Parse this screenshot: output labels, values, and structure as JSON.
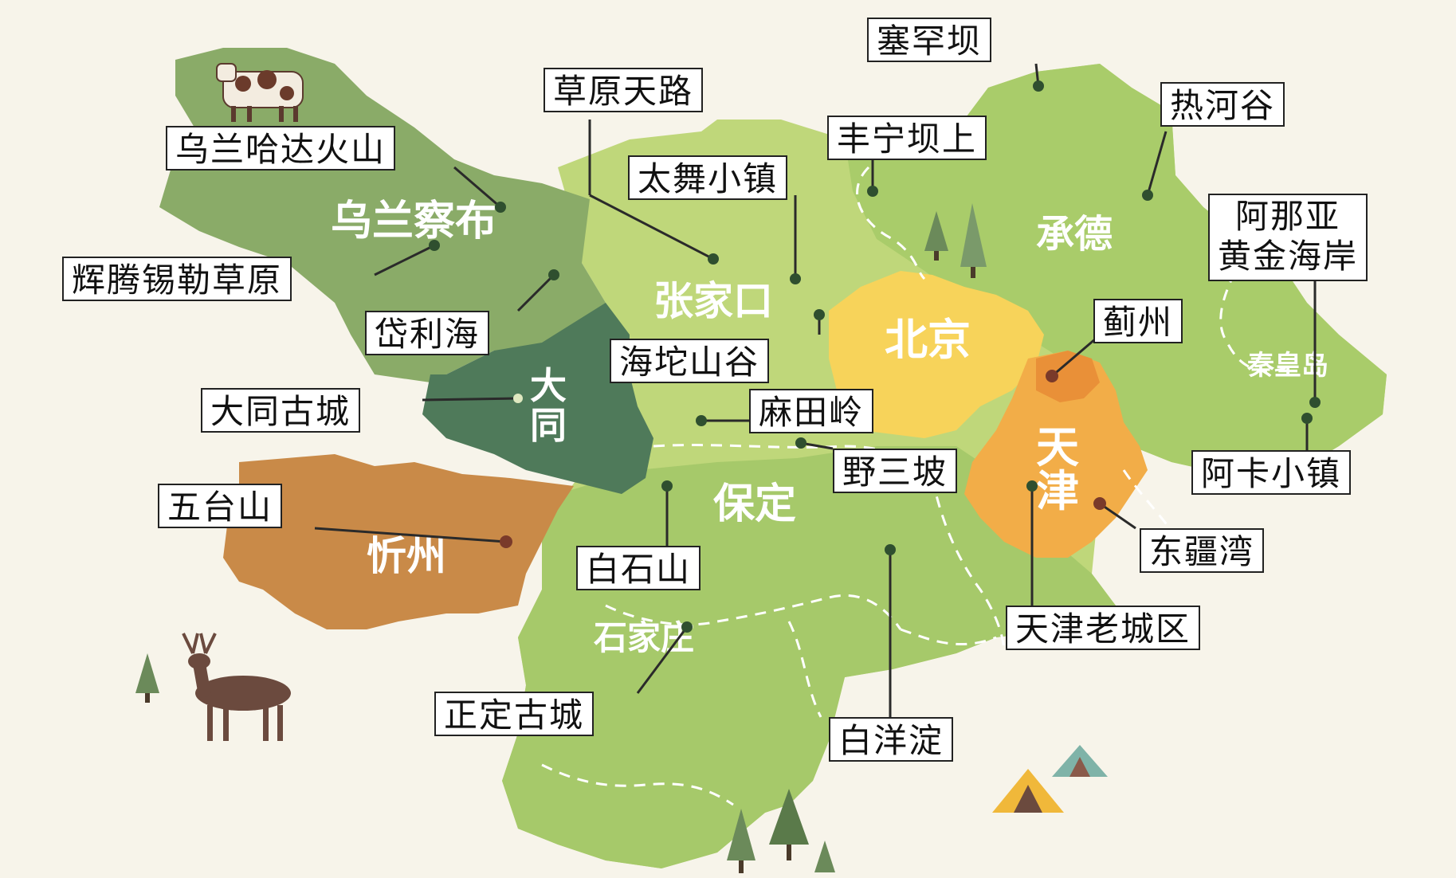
{
  "colors": {
    "background": "#f7f4ea",
    "hebei_light": "#bfd77a",
    "hebei_mid": "#a6c96a",
    "chengde": "#a9cc6a",
    "wulanchabu": "#8aab68",
    "datong": "#4f7a5a",
    "xinzhou": "#c98a48",
    "beijing": "#f7d35a",
    "tianjin": "#f2ad48",
    "tianjin_dark": "#e99038",
    "pin": "#2f4f2f",
    "border_dash": "#ffffff"
  },
  "regions": {
    "wulanchabu": "乌兰察布",
    "zhangjiakou": "张家口",
    "chengde": "承德",
    "beijing": "北京",
    "datong_line1": "大",
    "datong_line2": "同",
    "tianjin_line1": "天",
    "tianjin_line2": "津",
    "qinhuangdao": "秦皇岛",
    "baoding": "保定",
    "xinzhou": "忻州",
    "shijiazhuang": "石家庄"
  },
  "spots": {
    "saihanba": "塞罕坝",
    "caoyuan_tianlu": "草原天路",
    "rehegu": "热河谷",
    "fengning_bashang": "丰宁坝上",
    "wulanhada": "乌兰哈达火山",
    "taiwu": "太舞小镇",
    "anaya_line1": "阿那亚",
    "anaya_line2": "黄金海岸",
    "huiteng": "辉腾锡勒草原",
    "jizhou": "蓟州",
    "dailihai": "岱利海",
    "haituo": "海坨山谷",
    "datong_gucheng": "大同古城",
    "matianling": "麻田岭",
    "aka": "阿卡小镇",
    "yesanpo": "野三坡",
    "wutaishan": "五台山",
    "dongjiangwan": "东疆湾",
    "baishishan": "白石山",
    "tianjin_laocheng": "天津老城区",
    "zhengding": "正定古城",
    "baiyangdian": "白洋淀"
  },
  "icons": [
    "cow-icon",
    "deer-icon",
    "tree-icon",
    "tent-icon"
  ]
}
